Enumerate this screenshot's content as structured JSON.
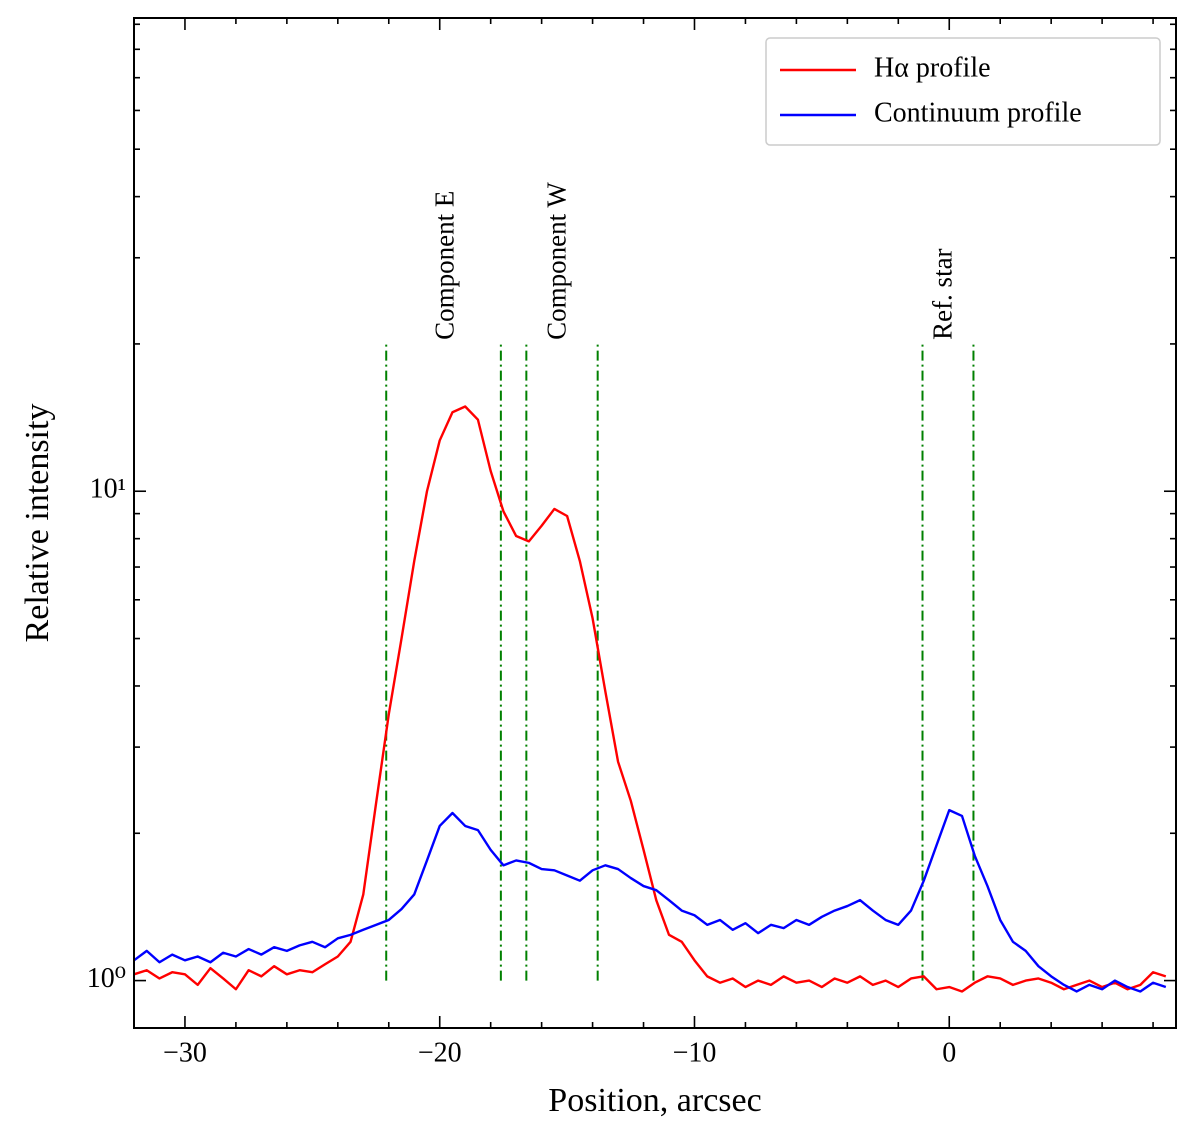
{
  "chart_data": {
    "type": "line",
    "xlabel": "Position, arcsec",
    "ylabel": "Relative intensity",
    "yscale": "log",
    "legend": "upper right",
    "xlim": [
      -32,
      8.9
    ],
    "ylim": [
      0.8,
      92.7
    ],
    "xticks": [
      {
        "value": -30,
        "label": "−30"
      },
      {
        "value": -20,
        "label": "−20"
      },
      {
        "value": -10,
        "label": "−10"
      },
      0
    ],
    "xminorticks": [
      -28,
      -26,
      -24,
      -22,
      -18,
      -16,
      -14,
      -12,
      -8,
      -6,
      -4,
      -2,
      2,
      4,
      6,
      8
    ],
    "yticks": [
      {
        "value": 1,
        "label": "10⁰"
      },
      {
        "value": 10,
        "label": "10¹"
      }
    ],
    "yminorticks": [
      2,
      3,
      4,
      5,
      6,
      7,
      8,
      9,
      20,
      30,
      40,
      50,
      60,
      70,
      80,
      90
    ],
    "x": [
      -32,
      -31.5,
      -31,
      -30.5,
      -30,
      -29.5,
      -29,
      -28.5,
      -28,
      -27.5,
      -27,
      -26.5,
      -26,
      -25.5,
      -25,
      -24.5,
      -24,
      -23.5,
      -23,
      -22.5,
      -22,
      -21.5,
      -21,
      -20.5,
      -20,
      -19.5,
      -19,
      -18.5,
      -18,
      -17.5,
      -17,
      -16.5,
      -16,
      -15.5,
      -15,
      -14.5,
      -14,
      -13.5,
      -13,
      -12.5,
      -12,
      -11.5,
      -11,
      -10.5,
      -10,
      -9.5,
      -9,
      -8.5,
      -8,
      -7.5,
      -7,
      -6.5,
      -6,
      -5.5,
      -5,
      -4.5,
      -4,
      -3.5,
      -3,
      -2.5,
      -2,
      -1.5,
      -1,
      -0.5,
      0,
      0.5,
      1,
      1.5,
      2,
      2.5,
      3,
      3.5,
      4,
      4.5,
      5,
      5.5,
      6,
      6.5,
      7,
      7.5,
      8,
      8.5
    ],
    "series": [
      {
        "name": "Hα profile",
        "color": "#ff0000",
        "values": [
          1.03,
          1.05,
          1.01,
          1.04,
          1.03,
          0.98,
          1.06,
          1.01,
          0.96,
          1.05,
          1.02,
          1.07,
          1.03,
          1.05,
          1.04,
          1.08,
          1.12,
          1.2,
          1.5,
          2.3,
          3.5,
          5.0,
          7.2,
          10,
          12.7,
          14.5,
          14.9,
          14,
          11,
          9.1,
          8.1,
          7.9,
          8.5,
          9.2,
          8.9,
          7.2,
          5.5,
          3.9,
          2.8,
          2.33,
          1.85,
          1.46,
          1.24,
          1.2,
          1.1,
          1.02,
          0.99,
          1.01,
          0.97,
          1.0,
          0.98,
          1.02,
          0.99,
          1.0,
          0.97,
          1.01,
          0.99,
          1.02,
          0.98,
          1.0,
          0.97,
          1.01,
          1.02,
          0.96,
          0.97,
          0.95,
          0.99,
          1.02,
          1.01,
          0.98,
          1.0,
          1.01,
          0.99,
          0.96,
          0.98,
          1.0,
          0.97,
          0.99,
          0.96,
          0.98,
          1.04,
          1.02
        ]
      },
      {
        "name": "Continuum profile",
        "color": "#0000ff",
        "values": [
          1.1,
          1.15,
          1.09,
          1.13,
          1.1,
          1.12,
          1.09,
          1.14,
          1.12,
          1.16,
          1.13,
          1.17,
          1.15,
          1.18,
          1.2,
          1.17,
          1.22,
          1.24,
          1.27,
          1.3,
          1.33,
          1.4,
          1.5,
          1.76,
          2.07,
          2.2,
          2.07,
          2.03,
          1.85,
          1.72,
          1.76,
          1.74,
          1.69,
          1.68,
          1.64,
          1.6,
          1.68,
          1.72,
          1.69,
          1.62,
          1.56,
          1.53,
          1.46,
          1.39,
          1.36,
          1.3,
          1.33,
          1.27,
          1.31,
          1.25,
          1.3,
          1.28,
          1.33,
          1.3,
          1.35,
          1.39,
          1.42,
          1.46,
          1.39,
          1.33,
          1.3,
          1.39,
          1.6,
          1.89,
          2.23,
          2.17,
          1.8,
          1.56,
          1.33,
          1.2,
          1.15,
          1.07,
          1.02,
          0.98,
          0.95,
          0.98,
          0.96,
          1.0,
          0.97,
          0.95,
          0.99,
          0.97
        ]
      }
    ],
    "vlines": {
      "x": [
        -22.1,
        -17.6,
        -16.6,
        -13.8,
        -1.05,
        0.95
      ],
      "ylim": [
        1,
        20
      ],
      "color": "#008000"
    },
    "annotation_color": "#a52a2a",
    "annotations": [
      {
        "text": "Component E",
        "x": -19.7,
        "y": 20
      },
      {
        "text": "Component W",
        "x": -15.3,
        "y": 20
      },
      {
        "text": "Ref. star",
        "x": -0.15,
        "y": 20
      }
    ]
  }
}
